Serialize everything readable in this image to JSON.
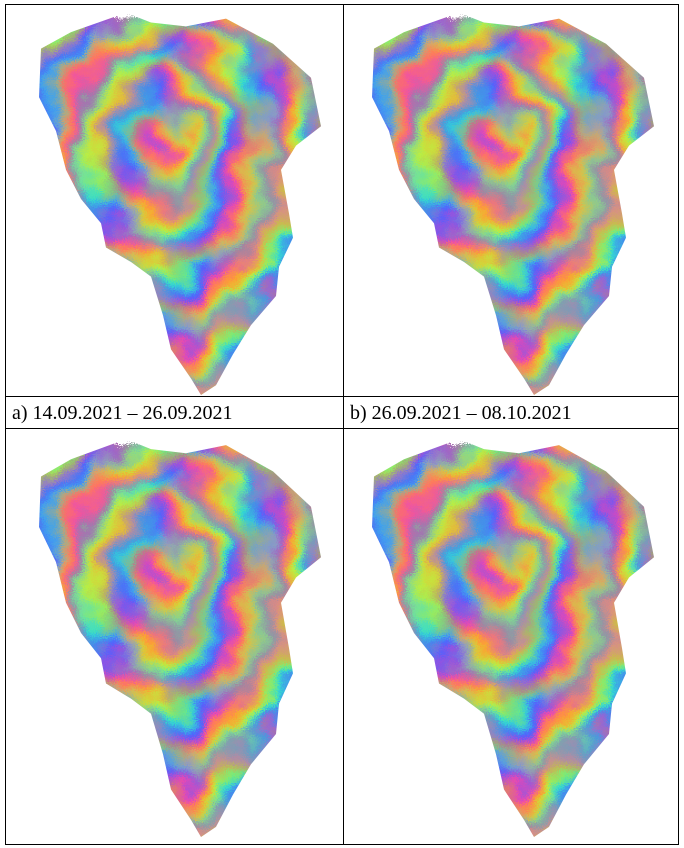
{
  "cells": [
    {
      "caption": "a) 14.09.2021 – 26.09.2021"
    },
    {
      "caption": "b) 26.09.2021 – 08.10.2021"
    }
  ]
}
